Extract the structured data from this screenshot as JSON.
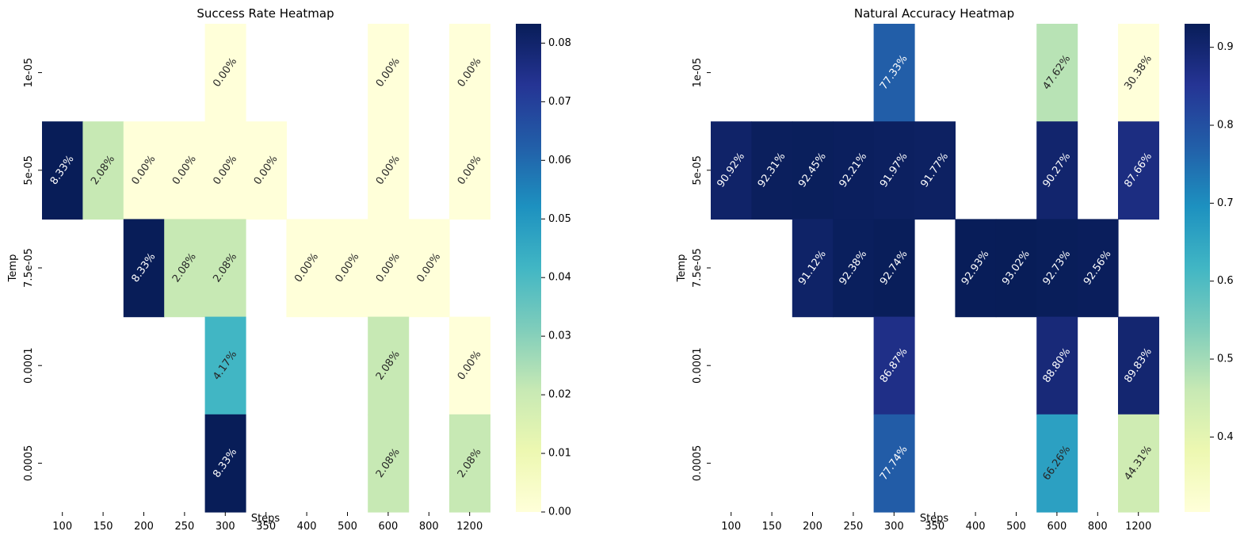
{
  "chart_data": [
    {
      "type": "heatmap",
      "title": "Success Rate Heatmap",
      "xlabel": "Steps",
      "ylabel": "Temp",
      "x_categories": [
        "100",
        "150",
        "200",
        "250",
        "300",
        "350",
        "400",
        "500",
        "600",
        "800",
        "1200"
      ],
      "y_categories": [
        "1e-05",
        "5e-05",
        "7.5e-05",
        "0.0001",
        "0.0005"
      ],
      "colormap": "YlGnBu",
      "vmin": 0.0,
      "vmax": 0.0833,
      "colorbar_ticks": [
        "0.00",
        "0.01",
        "0.02",
        "0.03",
        "0.04",
        "0.05",
        "0.06",
        "0.07",
        "0.08"
      ],
      "colorbar_tick_values": [
        0,
        0.01,
        0.02,
        0.03,
        0.04,
        0.05,
        0.06,
        0.07,
        0.08
      ],
      "cells": [
        {
          "x": "300",
          "y": "1e-05",
          "value": 0.0,
          "label": "0.00%"
        },
        {
          "x": "600",
          "y": "1e-05",
          "value": 0.0,
          "label": "0.00%"
        },
        {
          "x": "1200",
          "y": "1e-05",
          "value": 0.0,
          "label": "0.00%"
        },
        {
          "x": "100",
          "y": "5e-05",
          "value": 0.0833,
          "label": "8.33%"
        },
        {
          "x": "150",
          "y": "5e-05",
          "value": 0.0208,
          "label": "2.08%"
        },
        {
          "x": "200",
          "y": "5e-05",
          "value": 0.0,
          "label": "0.00%"
        },
        {
          "x": "250",
          "y": "5e-05",
          "value": 0.0,
          "label": "0.00%"
        },
        {
          "x": "300",
          "y": "5e-05",
          "value": 0.0,
          "label": "0.00%"
        },
        {
          "x": "350",
          "y": "5e-05",
          "value": 0.0,
          "label": "0.00%"
        },
        {
          "x": "600",
          "y": "5e-05",
          "value": 0.0,
          "label": "0.00%"
        },
        {
          "x": "1200",
          "y": "5e-05",
          "value": 0.0,
          "label": "0.00%"
        },
        {
          "x": "200",
          "y": "7.5e-05",
          "value": 0.0833,
          "label": "8.33%"
        },
        {
          "x": "250",
          "y": "7.5e-05",
          "value": 0.0208,
          "label": "2.08%"
        },
        {
          "x": "300",
          "y": "7.5e-05",
          "value": 0.0208,
          "label": "2.08%"
        },
        {
          "x": "400",
          "y": "7.5e-05",
          "value": 0.0,
          "label": "0.00%"
        },
        {
          "x": "500",
          "y": "7.5e-05",
          "value": 0.0,
          "label": "0.00%"
        },
        {
          "x": "600",
          "y": "7.5e-05",
          "value": 0.0,
          "label": "0.00%"
        },
        {
          "x": "800",
          "y": "7.5e-05",
          "value": 0.0,
          "label": "0.00%"
        },
        {
          "x": "300",
          "y": "0.0001",
          "value": 0.0417,
          "label": "4.17%"
        },
        {
          "x": "600",
          "y": "0.0001",
          "value": 0.0208,
          "label": "2.08%"
        },
        {
          "x": "1200",
          "y": "0.0001",
          "value": 0.0,
          "label": "0.00%"
        },
        {
          "x": "300",
          "y": "0.0005",
          "value": 0.0833,
          "label": "8.33%"
        },
        {
          "x": "600",
          "y": "0.0005",
          "value": 0.0208,
          "label": "2.08%"
        },
        {
          "x": "1200",
          "y": "0.0005",
          "value": 0.0208,
          "label": "2.08%"
        }
      ]
    },
    {
      "type": "heatmap",
      "title": "Natural Accuracy Heatmap",
      "xlabel": "Steps",
      "ylabel": "Temp",
      "x_categories": [
        "100",
        "150",
        "200",
        "250",
        "300",
        "350",
        "400",
        "500",
        "600",
        "800",
        "1200"
      ],
      "y_categories": [
        "1e-05",
        "5e-05",
        "7.5e-05",
        "0.0001",
        "0.0005"
      ],
      "colormap": "YlGnBu",
      "vmin": 0.3038,
      "vmax": 0.9302,
      "colorbar_ticks": [
        "0.4",
        "0.5",
        "0.6",
        "0.7",
        "0.8",
        "0.9"
      ],
      "colorbar_tick_values": [
        0.4,
        0.5,
        0.6,
        0.7,
        0.8,
        0.9
      ],
      "cells": [
        {
          "x": "300",
          "y": "1e-05",
          "value": 0.7733,
          "label": "77.33%"
        },
        {
          "x": "600",
          "y": "1e-05",
          "value": 0.4762,
          "label": "47.62%"
        },
        {
          "x": "1200",
          "y": "1e-05",
          "value": 0.3038,
          "label": "30.38%"
        },
        {
          "x": "100",
          "y": "5e-05",
          "value": 0.9092,
          "label": "90.92%"
        },
        {
          "x": "150",
          "y": "5e-05",
          "value": 0.9231,
          "label": "92.31%"
        },
        {
          "x": "200",
          "y": "5e-05",
          "value": 0.9245,
          "label": "92.45%"
        },
        {
          "x": "250",
          "y": "5e-05",
          "value": 0.9221,
          "label": "92.21%"
        },
        {
          "x": "300",
          "y": "5e-05",
          "value": 0.9197,
          "label": "91.97%"
        },
        {
          "x": "350",
          "y": "5e-05",
          "value": 0.9177,
          "label": "91.77%"
        },
        {
          "x": "600",
          "y": "5e-05",
          "value": 0.9027,
          "label": "90.27%"
        },
        {
          "x": "1200",
          "y": "5e-05",
          "value": 0.8766,
          "label": "87.66%"
        },
        {
          "x": "200",
          "y": "7.5e-05",
          "value": 0.9112,
          "label": "91.12%"
        },
        {
          "x": "250",
          "y": "7.5e-05",
          "value": 0.9238,
          "label": "92.38%"
        },
        {
          "x": "300",
          "y": "7.5e-05",
          "value": 0.9274,
          "label": "92.74%"
        },
        {
          "x": "400",
          "y": "7.5e-05",
          "value": 0.9293,
          "label": "92.93%"
        },
        {
          "x": "500",
          "y": "7.5e-05",
          "value": 0.9302,
          "label": "93.02%"
        },
        {
          "x": "600",
          "y": "7.5e-05",
          "value": 0.9273,
          "label": "92.73%"
        },
        {
          "x": "800",
          "y": "7.5e-05",
          "value": 0.9256,
          "label": "92.56%"
        },
        {
          "x": "300",
          "y": "0.0001",
          "value": 0.8687,
          "label": "86.87%"
        },
        {
          "x": "600",
          "y": "0.0001",
          "value": 0.888,
          "label": "88.80%"
        },
        {
          "x": "1200",
          "y": "0.0001",
          "value": 0.8983,
          "label": "89.83%"
        },
        {
          "x": "300",
          "y": "0.0005",
          "value": 0.7774,
          "label": "77.74%"
        },
        {
          "x": "600",
          "y": "0.0005",
          "value": 0.6626,
          "label": "66.26%"
        },
        {
          "x": "1200",
          "y": "0.0005",
          "value": 0.4431,
          "label": "44.31%"
        }
      ]
    }
  ]
}
